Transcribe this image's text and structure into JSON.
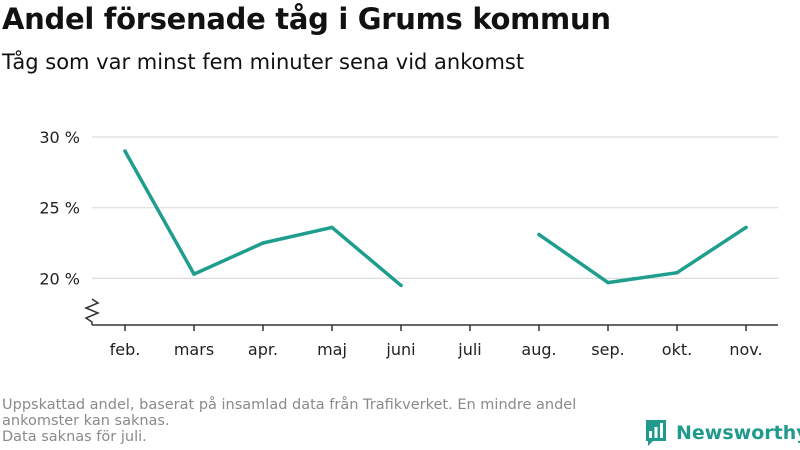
{
  "header": {
    "title": "Andel försenade tåg i Grums kommun",
    "subtitle": "Tåg som var minst fem minuter sena vid ankomst"
  },
  "footer": {
    "note_line1": "Uppskattad andel, baserat på insamlad data från Trafikverket. En mindre andel",
    "note_line2": "ankomster kan saknas.",
    "note_line3": "Data saknas för juli.",
    "brand": "Newsworthy",
    "brand_icon": "newsworthy-logo-icon"
  },
  "chart_data": {
    "type": "line",
    "title": "Andel försenade tåg i Grums kommun",
    "subtitle": "Tåg som var minst fem minuter sena vid ankomst",
    "categories": [
      "feb.",
      "mars",
      "apr.",
      "maj",
      "juni",
      "juli",
      "aug.",
      "sep.",
      "okt.",
      "nov."
    ],
    "series": [
      {
        "values": [
          29.0,
          20.3,
          22.5,
          23.6,
          19.5,
          null,
          23.1,
          19.7,
          20.4,
          23.6
        ]
      }
    ],
    "yticks": [
      20,
      25,
      30
    ],
    "ytick_labels": [
      "20 %",
      "25 %",
      "30 %"
    ],
    "ylim": [
      16.7,
      30
    ],
    "y_axis_break": true,
    "grid": true,
    "line_color": "#1f9e8e",
    "grid_color": "#dddddd",
    "brand_color": "#1f9a8c"
  }
}
